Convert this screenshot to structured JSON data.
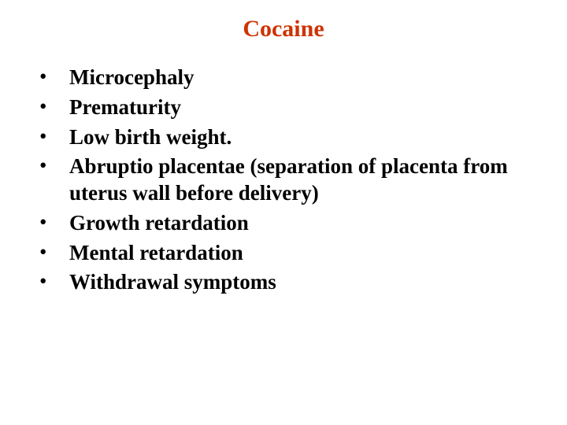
{
  "slide": {
    "title": "Cocaine",
    "title_color": "#cc3300",
    "title_fontsize": 30,
    "text_color": "#000000",
    "body_fontsize": 27,
    "background_color": "#ffffff",
    "bullet_char": "•",
    "items": [
      "Microcephaly",
      "Prematurity",
      "Low birth weight.",
      "Abruptio placentae (separation of placenta from uterus wall before delivery)",
      "Growth retardation",
      "Mental retardation",
      "Withdrawal symptoms"
    ]
  }
}
